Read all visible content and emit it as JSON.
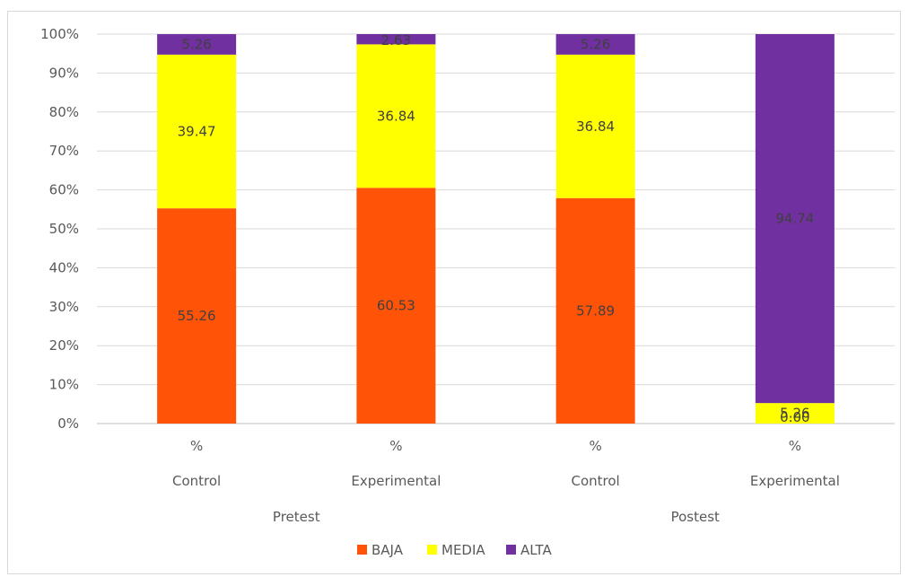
{
  "chart_data": {
    "type": "bar",
    "stacked": true,
    "percent_stacked": true,
    "categories": [
      "% Control Pretest",
      "% Experimental Pretest",
      "% Control Postest",
      "% Experimental Postest"
    ],
    "category_levels": {
      "level1": [
        "%",
        "%",
        "%",
        "%"
      ],
      "level2": [
        "Control",
        "Experimental",
        "Control",
        "Experimental"
      ],
      "level3": [
        {
          "label": "Pretest",
          "span": [
            0,
            1
          ]
        },
        {
          "label": "Postest",
          "span": [
            2,
            3
          ]
        }
      ]
    },
    "series": [
      {
        "name": "BAJA",
        "color": "#ff5307",
        "values": [
          55.26,
          60.53,
          57.89,
          0.0
        ],
        "labels": [
          "55.26",
          "60.53",
          "57.89",
          "0.00"
        ]
      },
      {
        "name": "MEDIA",
        "color": "#ffff00",
        "values": [
          39.47,
          36.84,
          36.84,
          5.26
        ],
        "labels": [
          "39.47",
          "36.84",
          "36.84",
          "5.26"
        ]
      },
      {
        "name": "ALTA",
        "color": "#7030a0",
        "values": [
          5.26,
          2.63,
          5.26,
          94.74
        ],
        "labels": [
          "5.26",
          "2.63",
          "5.26",
          "94.74"
        ]
      }
    ],
    "ylim": [
      0,
      100
    ],
    "yticks": [
      "0%",
      "10%",
      "20%",
      "30%",
      "40%",
      "50%",
      "60%",
      "70%",
      "80%",
      "90%",
      "100%"
    ],
    "grid": true,
    "legend": "bottom"
  }
}
